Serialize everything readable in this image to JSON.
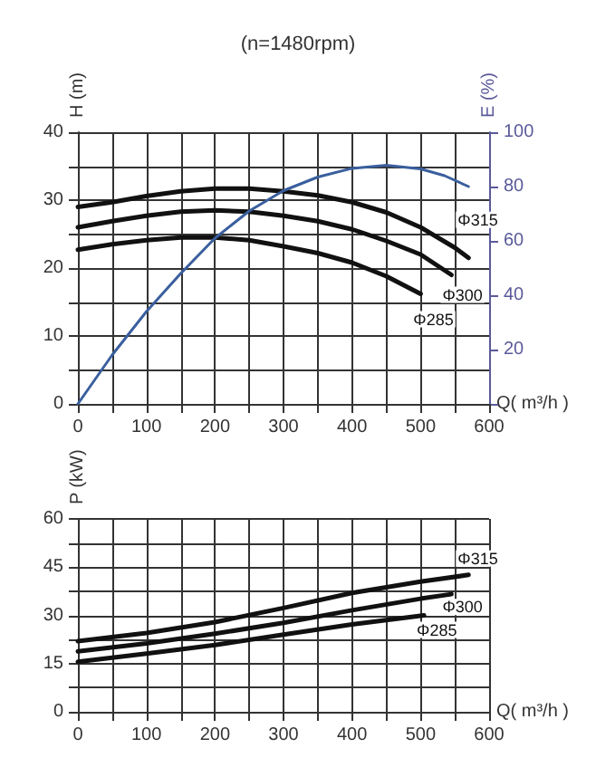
{
  "chart_data": [
    {
      "type": "line",
      "title": "(n=1480rpm)",
      "xlabel": "Q( m³/h )",
      "ylabel": "H (m)",
      "y2label": "E (%)",
      "xlim": [
        0,
        600
      ],
      "xticks": [
        0,
        {
          "value": 50,
          "label": null
        },
        100,
        {
          "value": 150,
          "label": null
        },
        200,
        {
          "value": 250,
          "label": null
        },
        300,
        {
          "value": 350,
          "label": null
        },
        400,
        {
          "value": 450,
          "label": null
        },
        500,
        {
          "value": 550,
          "label": null
        },
        600
      ],
      "ylim": [
        0,
        40
      ],
      "yticks": [
        0,
        {
          "value": 5,
          "label": null
        },
        10,
        {
          "value": 15,
          "label": null
        },
        20,
        {
          "value": 25,
          "label": null
        },
        30,
        {
          "value": 35,
          "label": null
        },
        40
      ],
      "y2lim": [
        0,
        100
      ],
      "y2ticks": [
        {
          "value": 0,
          "label": null
        },
        20,
        40,
        60,
        80,
        100
      ],
      "grid": true,
      "legend": false,
      "marker": "none",
      "line_style": "solid",
      "series": [
        {
          "name": "Φ315",
          "color": "#111111",
          "x": [
            0,
            50,
            100,
            150,
            200,
            250,
            300,
            350,
            400,
            450,
            500,
            550,
            570
          ],
          "values": [
            29,
            29.7,
            30.6,
            31.3,
            31.7,
            31.7,
            31.3,
            30.7,
            29.7,
            28.2,
            26,
            23,
            21.5
          ]
        },
        {
          "name": "Φ300",
          "color": "#111111",
          "x": [
            0,
            50,
            100,
            150,
            200,
            250,
            300,
            350,
            400,
            450,
            500,
            545
          ],
          "values": [
            26,
            26.9,
            27.7,
            28.3,
            28.5,
            28.3,
            27.7,
            26.9,
            25.7,
            24,
            22,
            19
          ]
        },
        {
          "name": "Φ285",
          "color": "#111111",
          "x": [
            0,
            50,
            100,
            150,
            200,
            250,
            300,
            350,
            400,
            450,
            500
          ],
          "values": [
            22.7,
            23.5,
            24.1,
            24.5,
            24.5,
            24.1,
            23.2,
            22.2,
            20.8,
            18.8,
            16.2
          ]
        },
        {
          "color": "#3a5f9e",
          "axis": "y2",
          "x": [
            0,
            50,
            100,
            150,
            200,
            250,
            300,
            350,
            400,
            450,
            500,
            535,
            570
          ],
          "values": [
            0,
            18,
            34,
            48,
            61,
            71,
            78.5,
            83.5,
            86.7,
            87.8,
            86.5,
            84,
            80
          ]
        }
      ]
    },
    {
      "type": "line",
      "xlabel": "Q( m³/h )",
      "ylabel": "P (kW)",
      "xlim": [
        0,
        600
      ],
      "xticks": [
        0,
        {
          "value": 50,
          "label": null
        },
        100,
        {
          "value": 150,
          "label": null
        },
        200,
        {
          "value": 250,
          "label": null
        },
        300,
        {
          "value": 350,
          "label": null
        },
        400,
        {
          "value": 450,
          "label": null
        },
        500,
        {
          "value": 550,
          "label": null
        },
        600
      ],
      "ylim": [
        0,
        60
      ],
      "yticks": [
        0,
        {
          "value": 7.5,
          "label": null
        },
        15,
        {
          "value": 22.5,
          "label": null
        },
        30,
        {
          "value": 37.5,
          "label": null
        },
        45,
        {
          "value": 52.5,
          "label": null
        },
        60
      ],
      "grid": true,
      "legend": false,
      "marker": "none",
      "line_style": "solid",
      "series": [
        {
          "name": "Φ315",
          "color": "#111111",
          "x": [
            0,
            100,
            200,
            300,
            400,
            500,
            570
          ],
          "values": [
            22,
            24.5,
            27.9,
            32.3,
            37,
            40.5,
            42.6
          ]
        },
        {
          "name": "Φ300",
          "color": "#111111",
          "x": [
            0,
            100,
            200,
            300,
            400,
            500,
            545
          ],
          "values": [
            18.8,
            21.3,
            24.3,
            27.7,
            31.6,
            35.2,
            36.6
          ]
        },
        {
          "name": "Φ285",
          "color": "#111111",
          "x": [
            0,
            100,
            200,
            300,
            400,
            505
          ],
          "values": [
            15.6,
            18.1,
            20.8,
            24,
            27.2,
            30
          ]
        }
      ]
    }
  ]
}
